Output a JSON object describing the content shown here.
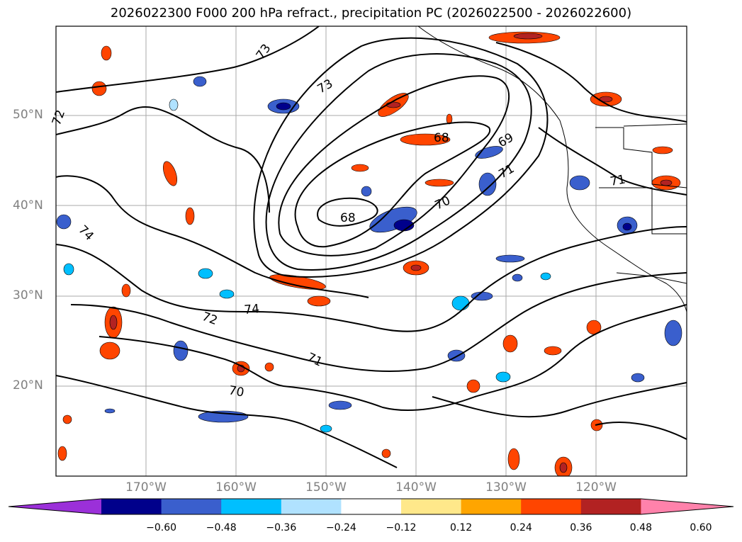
{
  "title": "2026022300 F000 200 hPa refract., precipitation PC (2026022500 - 2026022600)",
  "axes": {
    "lat_labels": [
      "50°N",
      "40°N",
      "30°N",
      "20°N"
    ],
    "lon_labels": [
      "170°W",
      "160°W",
      "150°W",
      "140°W",
      "130°W",
      "120°W"
    ]
  },
  "contour_labels": [
    "73",
    "72",
    "73",
    "68",
    "69",
    "71",
    "70",
    "68",
    "74",
    "72",
    "71",
    "70",
    "74",
    "71"
  ],
  "colorbar": {
    "colors": [
      "#9b30d9",
      "#00008b",
      "#3a5fcd",
      "#00bfff",
      "#b0e2ff",
      "#ffffff",
      "#ffe88a",
      "#ffa500",
      "#ff4500",
      "#b22222",
      "#ff82ab"
    ],
    "tick_labels": [
      "−0.60",
      "−0.48",
      "−0.36",
      "−0.24",
      "−0.12",
      "0.12",
      "0.24",
      "0.36",
      "0.48",
      "0.60"
    ]
  }
}
